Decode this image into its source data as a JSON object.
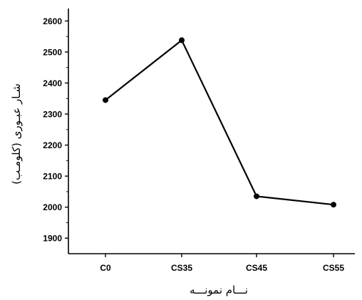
{
  "chart_data": {
    "type": "line",
    "title": "",
    "xlabel": "نـــام نمونـــه",
    "ylabel": "شـار عبـوری (کلومـب)",
    "categories": [
      "C0",
      "CS35",
      "CS45",
      "CS55"
    ],
    "series": [
      {
        "values": [
          2345,
          2538,
          2035,
          2008
        ]
      }
    ],
    "ylim": [
      1850,
      2640
    ],
    "yticks": [
      1900,
      2000,
      2100,
      2200,
      2300,
      2400,
      2500,
      2600
    ],
    "grid": false,
    "line_color": "#000000",
    "marker_color": "#000000"
  }
}
